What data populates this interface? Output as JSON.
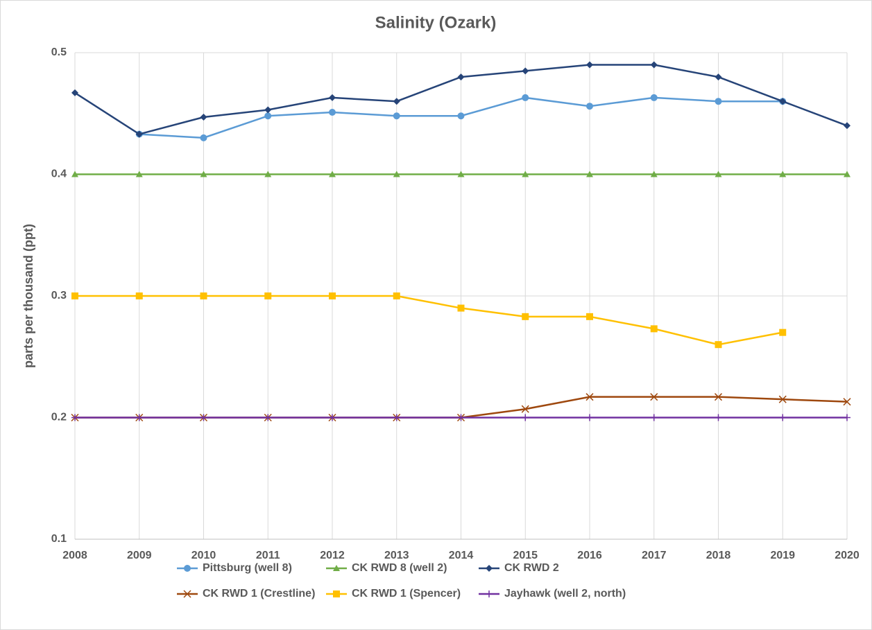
{
  "chart_data": {
    "type": "line",
    "title": "Salinity (Ozark)",
    "y_label": "parts per thousand (ppt)",
    "x": [
      2008,
      2009,
      2010,
      2011,
      2012,
      2013,
      2014,
      2015,
      2016,
      2017,
      2018,
      2019,
      2020
    ],
    "xlim": [
      2008,
      2020
    ],
    "xticks": [
      2008,
      2009,
      2010,
      2011,
      2012,
      2013,
      2014,
      2015,
      2016,
      2017,
      2018,
      2019,
      2020
    ],
    "ylim": [
      0.1,
      0.5
    ],
    "yticks": [
      0.1,
      0.2,
      0.3,
      0.4,
      0.5
    ],
    "grid": true,
    "legend": "bottom",
    "series": [
      {
        "name": "Pittsburg (well 8)",
        "color": "#5b9bd5",
        "marker": "circle",
        "values": [
          null,
          0.433,
          0.43,
          0.448,
          0.451,
          0.448,
          0.448,
          0.463,
          0.456,
          0.463,
          0.46,
          0.46,
          null
        ]
      },
      {
        "name": "CK RWD 8 (well 2)",
        "color": "#70ad47",
        "marker": "triangle",
        "values": [
          0.4,
          0.4,
          0.4,
          0.4,
          0.4,
          0.4,
          0.4,
          0.4,
          0.4,
          0.4,
          0.4,
          0.4,
          0.4
        ]
      },
      {
        "name": "CK RWD 2",
        "color": "#264478",
        "marker": "diamond",
        "values": [
          0.467,
          0.433,
          0.447,
          0.453,
          0.463,
          0.46,
          0.48,
          0.485,
          0.49,
          0.49,
          0.48,
          0.46,
          0.44
        ]
      },
      {
        "name": "CK RWD 1 (Crestline)",
        "color": "#9e480e",
        "marker": "x",
        "values": [
          0.2,
          0.2,
          0.2,
          0.2,
          0.2,
          0.2,
          0.2,
          0.207,
          0.217,
          0.217,
          0.217,
          0.215,
          0.213
        ]
      },
      {
        "name": "CK RWD 1 (Spencer)",
        "color": "#ffc000",
        "marker": "square",
        "values": [
          0.3,
          0.3,
          0.3,
          0.3,
          0.3,
          0.3,
          0.29,
          0.283,
          0.283,
          0.273,
          0.26,
          0.27,
          null
        ]
      },
      {
        "name": "Jayhawk (well 2, north)",
        "color": "#7030a0",
        "marker": "plus",
        "values": [
          0.2,
          0.2,
          0.2,
          0.2,
          0.2,
          0.2,
          0.2,
          0.2,
          0.2,
          0.2,
          0.2,
          0.2,
          0.2
        ]
      }
    ]
  }
}
